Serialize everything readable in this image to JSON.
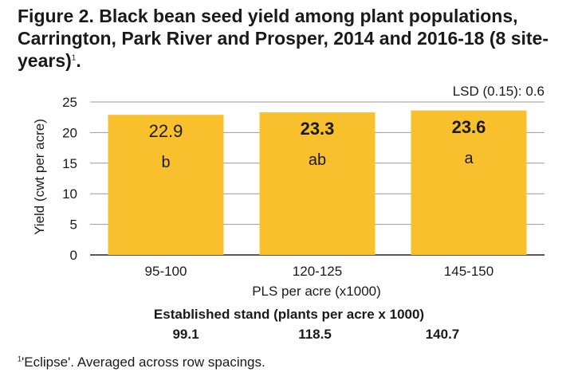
{
  "title": {
    "text": "Figure 2. Black bean seed yield among plant populations, Carrington, Park River and Prosper, 2014 and 2016-18 (8 site-years)",
    "superscript": "1",
    "trailing": "."
  },
  "chart_data": {
    "type": "bar",
    "categories": [
      "95-100",
      "120-125",
      "145-150"
    ],
    "values": [
      22.9,
      23.3,
      23.6
    ],
    "value_labels": [
      "22.9",
      "23.3",
      "23.6"
    ],
    "value_label_bold": [
      false,
      true,
      true
    ],
    "significance_letters": [
      "b",
      "ab",
      "a"
    ],
    "xlabel": "PLS per acre (x1000)",
    "ylabel": "Yield (cwt per acre)",
    "ylim": [
      0,
      25
    ],
    "yticks": [
      0,
      5,
      10,
      15,
      20,
      25
    ],
    "grid": true,
    "bar_color": "#F9C02D",
    "annotation": "LSD (0.15): 0.6"
  },
  "stand": {
    "header": "Established stand (plants per acre x 1000)",
    "values": [
      "99.1",
      "118.5",
      "140.7"
    ]
  },
  "footnote": {
    "superscript": "1",
    "text": "'Eclipse'. Averaged across row spacings."
  }
}
